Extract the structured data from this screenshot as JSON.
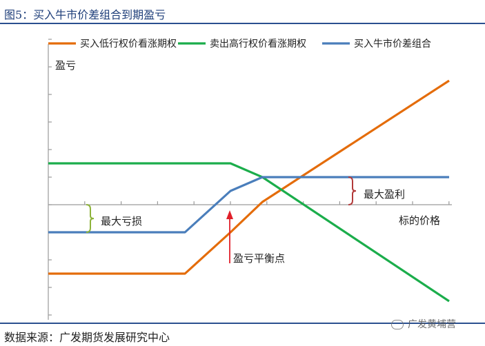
{
  "figure": {
    "title": "图5：买入牛市价差组合到期盈亏",
    "source": "数据来源：广发期货发展研究中心",
    "watermark": "广发黄埔营"
  },
  "chart_data": {
    "type": "line",
    "title": "图5：买入牛市价差组合到期盈亏",
    "xlabel": "标的价格",
    "ylabel": "盈亏",
    "x": [
      0,
      3,
      4,
      4.7,
      8.8
    ],
    "ylim": [
      -4,
      6
    ],
    "grid": false,
    "legend_position": "top",
    "series": [
      {
        "name": "买入低行权价看涨期权",
        "color": "#E46C0A",
        "values": [
          -2.5,
          -2.5,
          -1,
          0.1,
          4.5
        ]
      },
      {
        "name": "卖出高行权价看涨期权",
        "color": "#1BAD4B",
        "values": [
          1.5,
          1.5,
          1.5,
          1,
          -3.5
        ]
      },
      {
        "name": "买入牛市价差组合",
        "color": "#4A7EBB",
        "values": [
          -1,
          -1,
          0.5,
          1,
          1
        ]
      }
    ],
    "annotations": [
      {
        "text": "最大盈利",
        "type": "brace",
        "color": "#B23A3A"
      },
      {
        "text": "最大亏损",
        "type": "brace",
        "color": "#8DB33A"
      },
      {
        "text": "盈亏平衡点",
        "type": "arrow",
        "color": "#E0202A"
      }
    ]
  }
}
